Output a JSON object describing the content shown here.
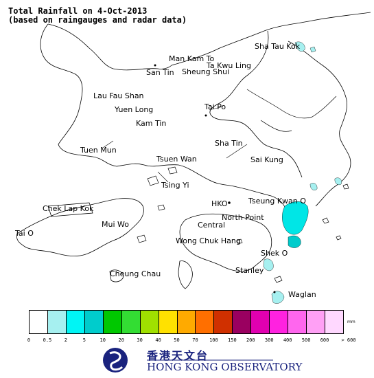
{
  "title": {
    "line1": "Total Rainfall on 4-Oct-2013",
    "line2": "(based on raingauges and radar data)"
  },
  "places": [
    {
      "id": "sha-tau-kok",
      "label": "Sha Tau Kok"
    },
    {
      "id": "man-kam-to",
      "label": "Man Kam To"
    },
    {
      "id": "ta-kwu-ling",
      "label": "Ta Kwu Ling"
    },
    {
      "id": "san-tin",
      "label": "San Tin"
    },
    {
      "id": "sheung-shui",
      "label": "Sheung Shui"
    },
    {
      "id": "lau-fau-shan",
      "label": "Lau Fau Shan"
    },
    {
      "id": "yuen-long",
      "label": "Yuen Long"
    },
    {
      "id": "kam-tin",
      "label": "Kam Tin"
    },
    {
      "id": "tai-po",
      "label": "Tai Po"
    },
    {
      "id": "sha-tin",
      "label": "Sha Tin"
    },
    {
      "id": "tuen-mun",
      "label": "Tuen Mun"
    },
    {
      "id": "tsuen-wan",
      "label": "Tsuen Wan"
    },
    {
      "id": "sai-kung",
      "label": "Sai Kung"
    },
    {
      "id": "tsing-yi",
      "label": "Tsing Yi"
    },
    {
      "id": "chek-lap-kok",
      "label": "Chek Lap Kok"
    },
    {
      "id": "hko",
      "label": "HKO"
    },
    {
      "id": "tseung-kwan-o",
      "label": "Tseung Kwan O"
    },
    {
      "id": "north-point",
      "label": "North Point"
    },
    {
      "id": "mui-wo",
      "label": "Mui Wo"
    },
    {
      "id": "central",
      "label": "Central"
    },
    {
      "id": "tai-o",
      "label": "Tai O"
    },
    {
      "id": "wong-chuk-hang",
      "label": "Wong Chuk Hang"
    },
    {
      "id": "shek-o",
      "label": "Shek O"
    },
    {
      "id": "stanley",
      "label": "Stanley"
    },
    {
      "id": "cheung-chau",
      "label": "Cheung Chau"
    },
    {
      "id": "waglan",
      "label": "Waglan"
    }
  ],
  "rainfall_areas": [
    {
      "area": "Tseung Kwan O / Clear Water Bay",
      "class": "2-5"
    },
    {
      "area": "Shek O",
      "class": "0.5-2"
    },
    {
      "area": "Waglan",
      "class": "0.5-2"
    },
    {
      "area": "Sai Kung islands",
      "class": "0.5-2"
    },
    {
      "area": "Sha Tau Kok",
      "class": "0.5-2"
    }
  ],
  "legend": {
    "colors": [
      "#ffffff",
      "#a6f0f0",
      "#00f5f5",
      "#00cccc",
      "#00c800",
      "#33dd33",
      "#a0e000",
      "#ffe100",
      "#ffaa00",
      "#ff6f00",
      "#d03000",
      "#9a0060",
      "#e000b0",
      "#ff22e0",
      "#ff66ee",
      "#ffa0f5",
      "#ffd8ff"
    ],
    "ticks": [
      "0",
      "0.5",
      "2",
      "5",
      "10",
      "20",
      "30",
      "40",
      "50",
      "70",
      "100",
      "150",
      "200",
      "300",
      "400",
      "500",
      "600",
      "> 600"
    ],
    "unit": "mm"
  },
  "logo": {
    "chinese": "香港天文台",
    "english": "HONG KONG OBSERVATORY",
    "color": "#1a237e"
  }
}
